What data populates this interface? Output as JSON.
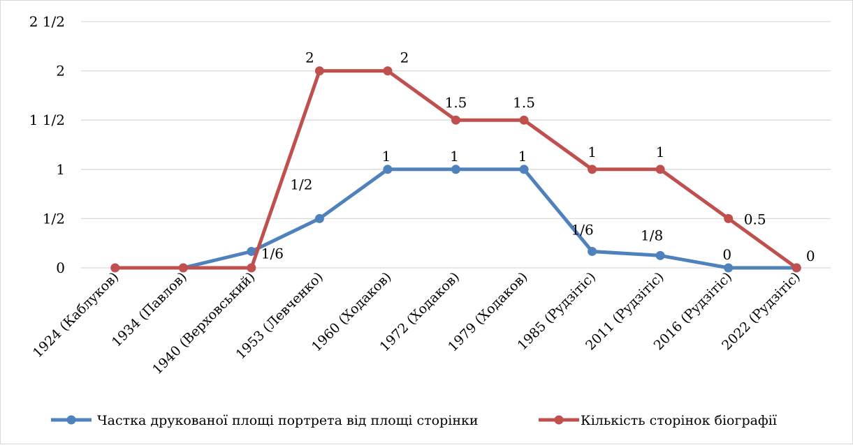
{
  "chart_data": {
    "type": "line",
    "categories": [
      "1924 (Каблуков)",
      "1934 (Павлов)",
      "1940 (Верховський)",
      "1953 (Левченко)",
      "1960 (Ходаков)",
      "1972 (Ходаков)",
      "1979 (Ходаков)",
      "1985 (Рудзітіс)",
      "2011 (Рудзітіс)",
      "2016 (Рудзітіс)",
      "2022 (Рудзітіс)"
    ],
    "y_ticks": [
      {
        "value": 0,
        "label": "0"
      },
      {
        "value": 0.5,
        "label": "1/2"
      },
      {
        "value": 1,
        "label": "1"
      },
      {
        "value": 1.5,
        "label": "1 1/2"
      },
      {
        "value": 2,
        "label": "2"
      },
      {
        "value": 2.5,
        "label": "2 1/2"
      }
    ],
    "ylim": [
      0,
      2.5
    ],
    "grid": true,
    "legend_position": "bottom",
    "series": [
      {
        "name": "Частка друкованої площі портрета від площі сторінки",
        "color": "#4f81bd",
        "values": [
          null,
          0,
          0.1667,
          0.5,
          1,
          1,
          1,
          0.1667,
          0.125,
          0,
          0
        ],
        "labels": [
          "",
          "",
          "1/6",
          "1/2",
          "1",
          "1",
          "1",
          "1/6",
          "1/8",
          "0",
          ""
        ]
      },
      {
        "name": "Кількість сторінок біографії",
        "color": "#c0504d",
        "values": [
          0,
          0,
          0,
          2,
          2,
          1.5,
          1.5,
          1,
          1,
          0.5,
          0
        ],
        "labels": [
          "",
          "",
          "",
          "2",
          "2",
          "1.5",
          "1.5",
          "1",
          "1",
          "0.5",
          "0"
        ]
      }
    ]
  }
}
